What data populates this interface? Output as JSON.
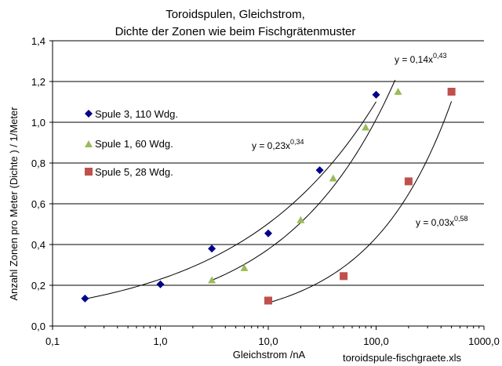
{
  "chart_data": {
    "type": "scatter",
    "title_lines": [
      "Toroidspulen, Gleichstrom,",
      "Dichte der Zonen wie beim Fischgrätenmuster"
    ],
    "xlabel": "Gleichstrom /nA",
    "ylabel": "Anzahl  Zonen  pro Meter (Dichte ) / 1/Meter",
    "x_scale": "log",
    "xlim": [
      0.1,
      1000
    ],
    "ylim": [
      0,
      1.4
    ],
    "x_ticks": [
      0.1,
      1,
      10,
      100,
      1000
    ],
    "x_tick_labels": [
      "0,1",
      "1,0",
      "10,0",
      "100,0",
      "1000,0"
    ],
    "y_ticks": [
      0,
      0.2,
      0.4,
      0.6,
      0.8,
      1.0,
      1.2,
      1.4
    ],
    "y_tick_labels": [
      "0,0",
      "0,2",
      "0,4",
      "0,6",
      "0,8",
      "1,0",
      "1,2",
      "1,4"
    ],
    "grid": "horizontal",
    "legend_position": "left",
    "series": [
      {
        "name": "Spule 3,  110 Wdg.",
        "marker": "diamond",
        "color": "#00008b",
        "points": [
          [
            0.2,
            0.135
          ],
          [
            1.0,
            0.205
          ],
          [
            3.0,
            0.38
          ],
          [
            10.0,
            0.455
          ],
          [
            30.0,
            0.765
          ],
          [
            100.0,
            1.135
          ]
        ],
        "fit": {
          "a": 0.23,
          "b": 0.34,
          "x_range": [
            0.2,
            100
          ]
        }
      },
      {
        "name": "Spule 1,  60 Wdg.",
        "marker": "triangle",
        "color": "#9bbb59",
        "points": [
          [
            3.0,
            0.225
          ],
          [
            6.0,
            0.285
          ],
          [
            20.0,
            0.52
          ],
          [
            40.0,
            0.725
          ],
          [
            80.0,
            0.975
          ],
          [
            160.0,
            1.15
          ]
        ],
        "fit": {
          "a": 0.14,
          "b": 0.43,
          "x_range": [
            3,
            150
          ]
        }
      },
      {
        "name": "Spule 5, 28 Wdg.",
        "marker": "square",
        "color": "#c0504d",
        "points": [
          [
            10.0,
            0.125
          ],
          [
            50.0,
            0.245
          ],
          [
            200.0,
            0.71
          ],
          [
            500.0,
            1.15
          ]
        ],
        "fit": {
          "a": 0.03,
          "b": 0.58,
          "x_range": [
            10,
            500
          ]
        }
      }
    ],
    "equations": [
      {
        "base": "y = 0,14x",
        "exp": "0,43"
      },
      {
        "base": "y = 0,23x",
        "exp": "0,34"
      },
      {
        "base": "y = 0,03x",
        "exp": "0,58"
      }
    ]
  },
  "footer_text": "toroidspule-fischgraete.xls"
}
